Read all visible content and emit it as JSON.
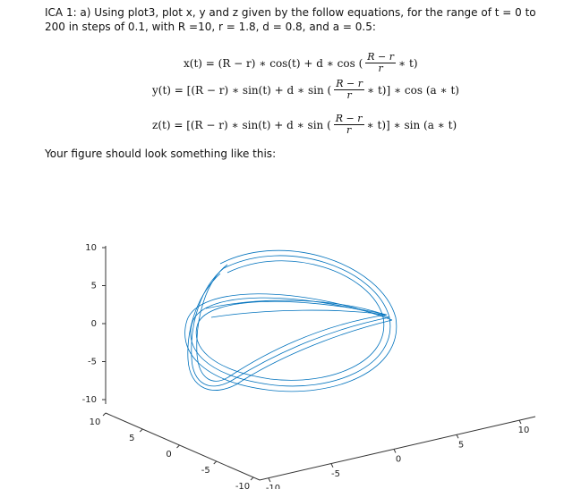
{
  "heading": "ICA 1: a) Using plot3, plot x, y and z given by the follow equations, for the range of t = 0 to 200 in steps of 0.1, with R =10, r = 1.8, d = 0.8, and a = 0.5:",
  "equations": [
    {
      "prefix": "x(t) = (R − r) ∗ cos(t) + d ∗ cos (",
      "numerator": "R − r",
      "denominator": "r",
      "suffix": "∗ t)"
    },
    {
      "prefix": "y(t) = [(R − r) ∗ sin(t) + d ∗ sin (",
      "numerator": "R − r",
      "denominator": "r",
      "suffix": "∗ t)] ∗ cos (a ∗ t)"
    },
    {
      "prefix": "z(t) = [(R − r) ∗ sin(t) + d ∗ sin (",
      "numerator": "R − r",
      "denominator": "r",
      "suffix": "∗ t)] ∗ sin (a ∗ t)"
    }
  ],
  "caption": "Your figure should look something like this:",
  "figure": {
    "z_ticks": [
      10,
      5,
      0,
      -5,
      -10
    ],
    "left_ticks": [
      10,
      5,
      0,
      -5,
      -10
    ],
    "right_ticks": [
      -10,
      -5,
      0,
      5,
      10
    ]
  }
}
